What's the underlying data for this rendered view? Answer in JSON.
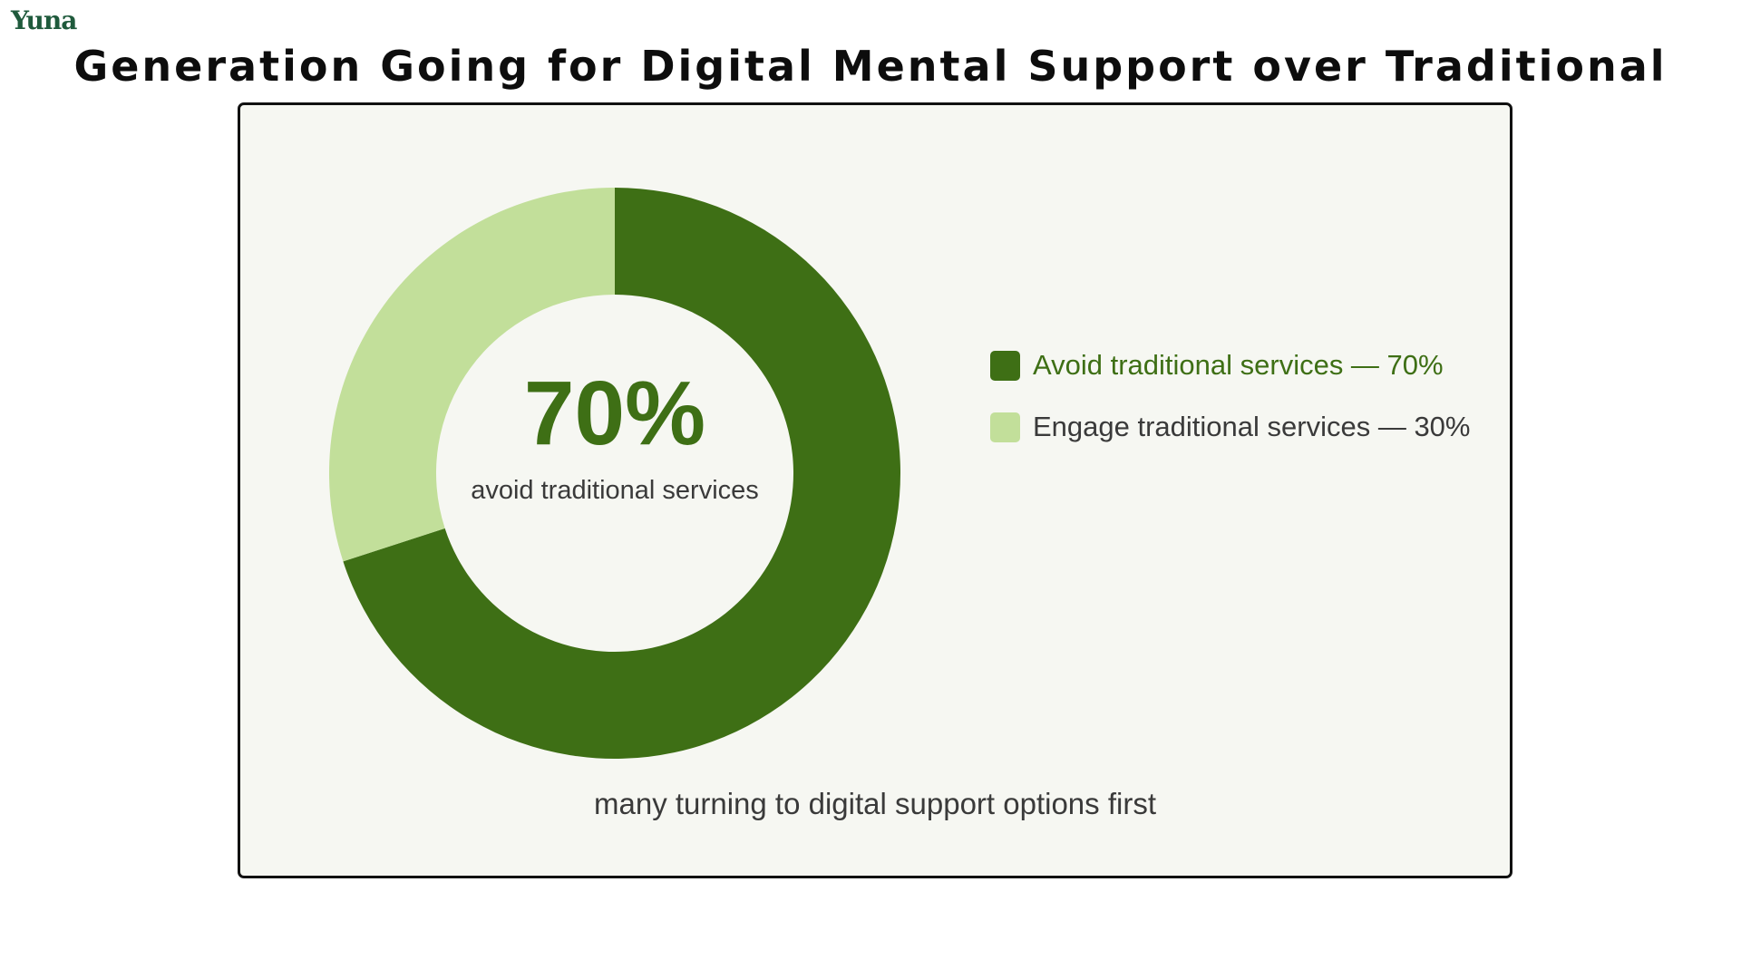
{
  "brand": {
    "logo_text": "Yuna"
  },
  "colors": {
    "primary": "#3e6f15",
    "secondary": "#c2df9a",
    "card_background": "#f6f7f2",
    "text_dark": "#3a3a3a"
  },
  "chart_data": {
    "type": "pie",
    "variant": "donut",
    "title": "Generation Going for Digital Mental Support over Traditional",
    "categories": [
      "Avoid traditional services",
      "Engage traditional services"
    ],
    "values": [
      70,
      30
    ],
    "unit": "%",
    "colors": [
      "#3e6f15",
      "#c2df9a"
    ],
    "legend": {
      "placement": "right",
      "entries": [
        {
          "label": "Avoid traditional services — 70%",
          "color": "#3e6f15",
          "text_color": "#3e6f15"
        },
        {
          "label": "Engage traditional services — 30%",
          "color": "#c2df9a",
          "text_color": "#3a3a3a"
        }
      ]
    },
    "center": {
      "value": "70%",
      "label": "avoid traditional services"
    },
    "annotation": "many turning to digital support options first"
  }
}
